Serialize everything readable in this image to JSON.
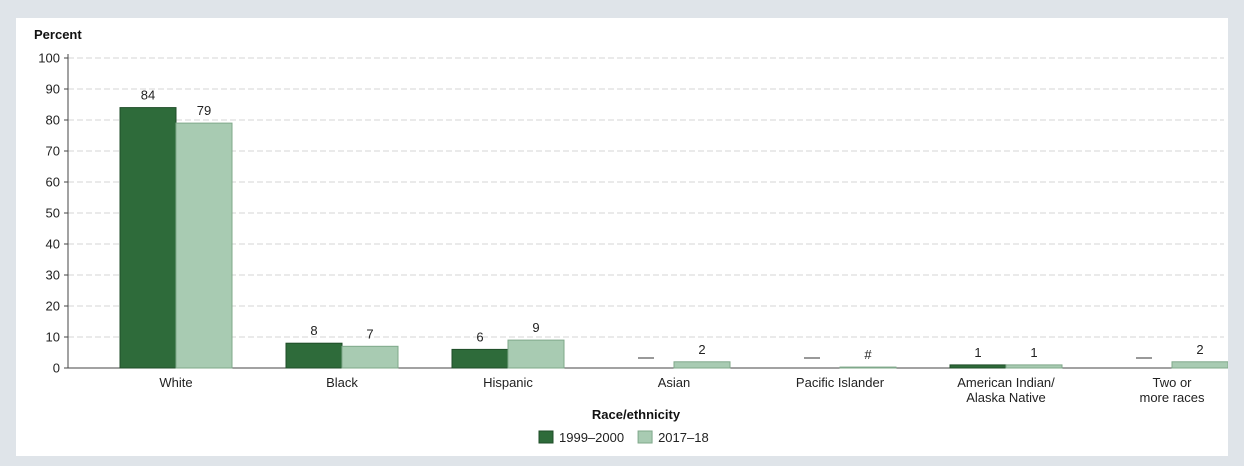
{
  "chart_data": {
    "type": "bar",
    "ylabel": "Percent",
    "xlabel": "Race/ethnicity",
    "ylim": [
      0,
      100
    ],
    "yticks": [
      0,
      10,
      20,
      30,
      40,
      50,
      60,
      70,
      80,
      90,
      100
    ],
    "grid": true,
    "legend_position": "bottom",
    "categories": [
      [
        "White"
      ],
      [
        "Black"
      ],
      [
        "Hispanic"
      ],
      [
        "Asian"
      ],
      [
        "Pacific Islander"
      ],
      [
        "American Indian/",
        "Alaska Native"
      ],
      [
        "Two or",
        "more races"
      ]
    ],
    "series": [
      {
        "name": "1999–2000",
        "color": "#2e6b3a",
        "values": [
          84,
          8,
          6,
          null,
          null,
          1,
          null
        ],
        "labels": [
          "84",
          "8",
          "6",
          "—",
          "—",
          "1",
          "—"
        ]
      },
      {
        "name": "2017–18",
        "color": "#a8cbb2",
        "values": [
          79,
          7,
          9,
          2,
          0.3,
          1,
          2
        ],
        "labels": [
          "79",
          "7",
          "9",
          "2",
          "#",
          "1",
          "2"
        ]
      }
    ]
  }
}
